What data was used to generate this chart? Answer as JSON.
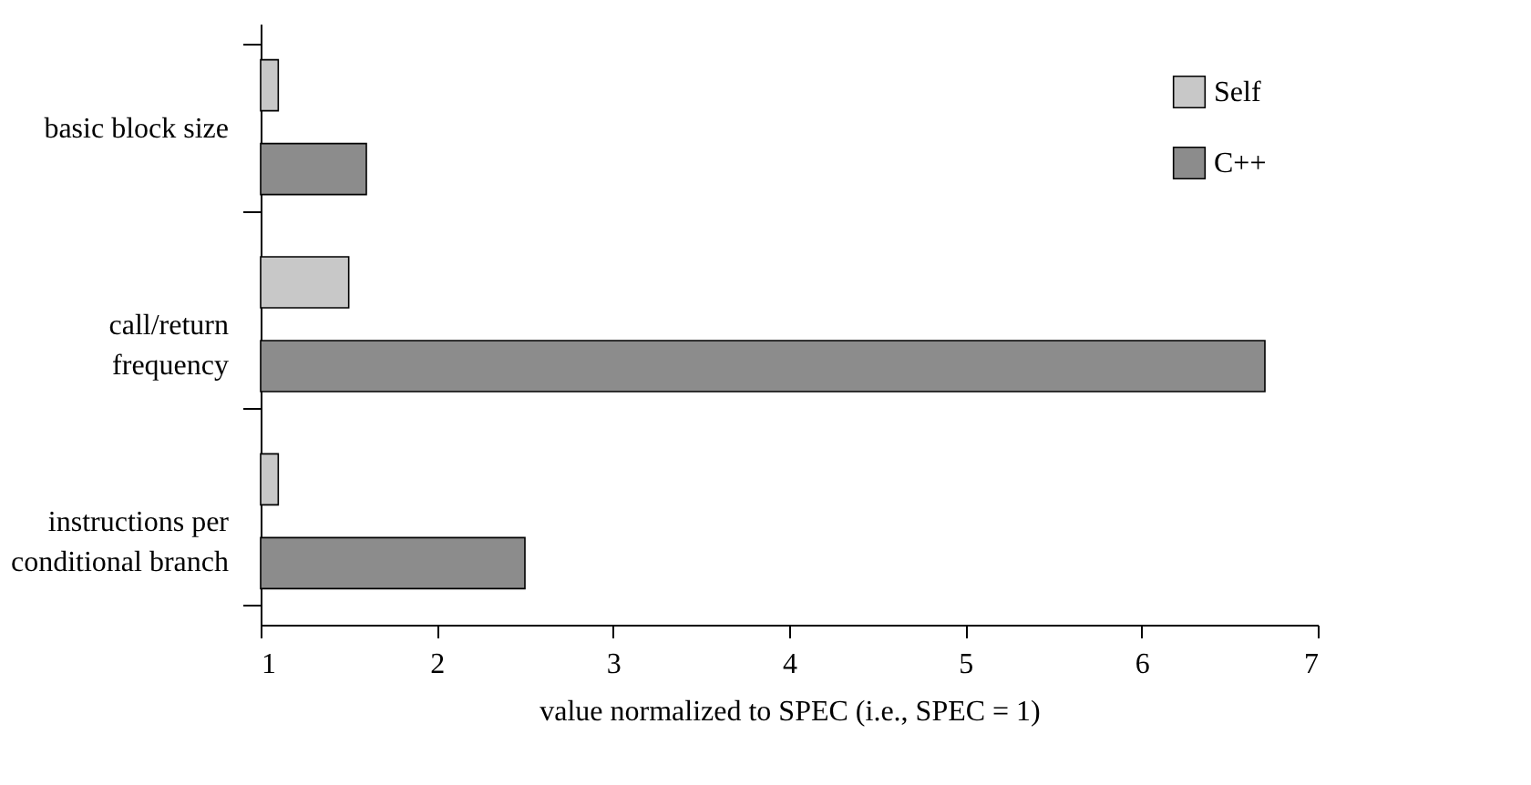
{
  "chart_data": {
    "type": "bar",
    "orientation": "horizontal",
    "categories": [
      "basic block size",
      "call/return\nfrequency",
      "instructions per\nconditional branch"
    ],
    "series": [
      {
        "name": "Self",
        "color": "#c8c8c8",
        "values": [
          1.1,
          1.5,
          1.1
        ]
      },
      {
        "name": "C++",
        "color": "#8c8c8c",
        "values": [
          1.6,
          6.7,
          2.5
        ]
      }
    ],
    "xlabel": "value normalized to SPEC (i.e., SPEC = 1)",
    "xlim": [
      1,
      7
    ],
    "xticks": [
      1,
      2,
      3,
      4,
      5,
      6,
      7
    ],
    "grid": false,
    "legend": "top right"
  }
}
